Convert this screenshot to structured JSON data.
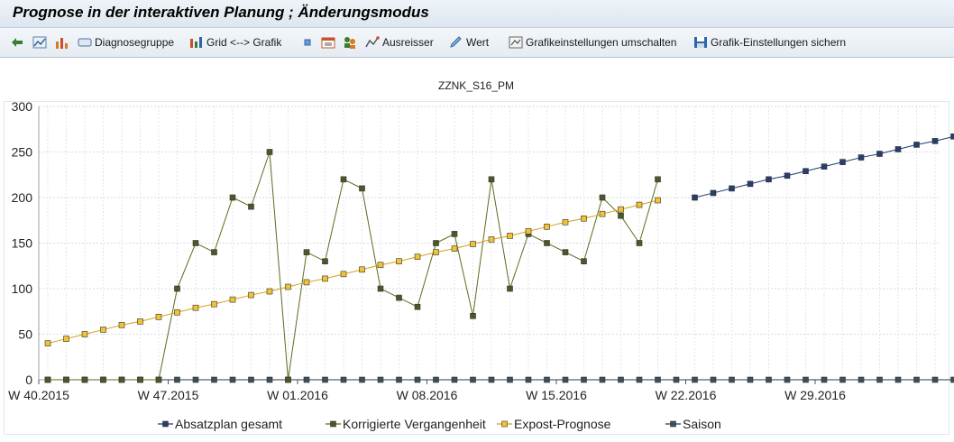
{
  "window": {
    "title": "Prognose in der interaktiven Planung  ; Änderungsmodus"
  },
  "toolbar": {
    "items": [
      {
        "icon": "back-arrow-icon",
        "label": ""
      },
      {
        "icon": "line-chart-icon",
        "label": ""
      },
      {
        "icon": "bar-sort-icon",
        "label": ""
      },
      {
        "icon": "diagnosis-icon",
        "label": "Diagnosegruppe"
      },
      {
        "icon": "grid-chart-icon",
        "label": "Grid <--> Grafik"
      },
      {
        "icon": "square-icon",
        "label": ""
      },
      {
        "icon": "calendar-icon",
        "label": ""
      },
      {
        "icon": "people-icon",
        "label": ""
      },
      {
        "icon": "outlier-icon",
        "label": "Ausreisser"
      },
      {
        "icon": "pencil-icon",
        "label": "Wert"
      },
      {
        "icon": "settings-switch-icon",
        "label": "Grafikeinstellungen umschalten"
      },
      {
        "icon": "save-icon",
        "label": "Grafik-Einstellungen sichern"
      }
    ]
  },
  "chart_data": {
    "type": "line",
    "title": "ZZNK_S16_PM",
    "ylim": [
      0,
      300
    ],
    "yticks": [
      0,
      50,
      100,
      150,
      200,
      250,
      300
    ],
    "xtick_labels": [
      "W 40.2015",
      "W 47.2015",
      "W 01.2016",
      "W 08.2016",
      "W 15.2016",
      "W 22.2016",
      "W 29.2016"
    ],
    "legend": "bottom",
    "grid": true,
    "colors": {
      "Absatzplan gesamt": "#1f3b73",
      "Korrigierte Vergangenheit": "#5d6b1e",
      "Expost-Prognose": "#d4a017",
      "Saison": "#2a3a4a"
    },
    "series": [
      {
        "name": "Absatzplan gesamt",
        "start_index": 35,
        "values": [
          200,
          205,
          210,
          215,
          220,
          224,
          229,
          234,
          239,
          244,
          248,
          253,
          258,
          262,
          267
        ]
      },
      {
        "name": "Korrigierte Vergangenheit",
        "start_index": 0,
        "values": [
          0,
          0,
          0,
          0,
          0,
          0,
          0,
          100,
          150,
          140,
          200,
          190,
          250,
          0,
          140,
          130,
          220,
          210,
          100,
          90,
          80,
          150,
          160,
          70,
          220,
          100,
          160,
          150,
          140,
          130,
          200,
          180,
          150,
          220
        ]
      },
      {
        "name": "Expost-Prognose",
        "start_index": 0,
        "values": [
          40,
          45,
          50,
          55,
          60,
          64,
          69,
          74,
          79,
          83,
          88,
          93,
          97,
          102,
          107,
          111,
          116,
          121,
          126,
          130,
          135,
          140,
          144,
          149,
          154,
          158,
          163,
          168,
          173,
          177,
          182,
          187,
          192,
          197
        ]
      },
      {
        "name": "Saison",
        "start_index": 0,
        "values": [
          0,
          0,
          0,
          0,
          0,
          0,
          0,
          0,
          0,
          0,
          0,
          0,
          0,
          0,
          0,
          0,
          0,
          0,
          0,
          0,
          0,
          0,
          0,
          0,
          0,
          0,
          0,
          0,
          0,
          0,
          0,
          0,
          0,
          0,
          0,
          0,
          0,
          0,
          0,
          0,
          0,
          0,
          0,
          0,
          0,
          0,
          0,
          0,
          0,
          0
        ]
      }
    ]
  }
}
